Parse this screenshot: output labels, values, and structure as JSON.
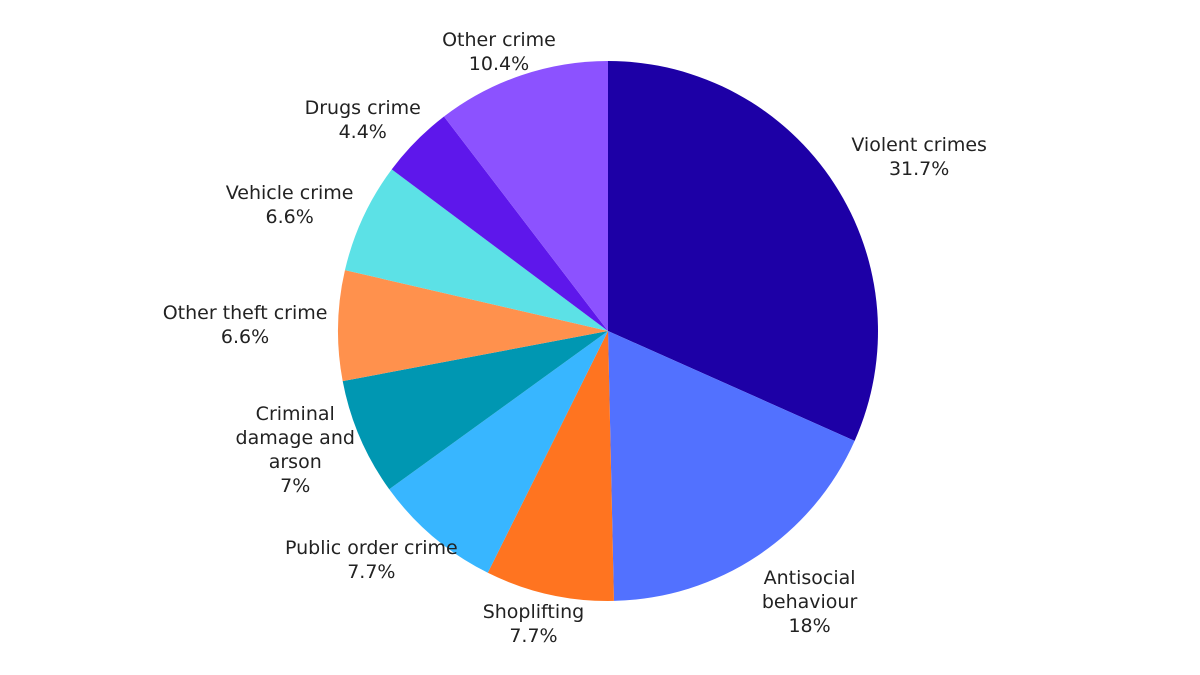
{
  "chart_data": {
    "type": "pie",
    "categories": [
      "Violent crimes",
      "Antisocial behaviour",
      "Shoplifting",
      "Public order crime",
      "Criminal damage and arson",
      "Other theft crime",
      "Vehicle crime",
      "Drugs crime",
      "Other crime"
    ],
    "values": [
      31.7,
      18,
      7.7,
      7.7,
      7,
      6.6,
      6.6,
      4.4,
      10.4
    ],
    "value_labels": [
      "31.7%",
      "18%",
      "7.7%",
      "7.7%",
      "7%",
      "6.6%",
      "6.6%",
      "4.4%",
      "10.4%"
    ],
    "colors": [
      "#1d00a6",
      "#5271ff",
      "#ff7420",
      "#38b6ff",
      "#0097b2",
      "#ff914d",
      "#5ce1e6",
      "#5e17eb",
      "#8c52ff"
    ]
  }
}
